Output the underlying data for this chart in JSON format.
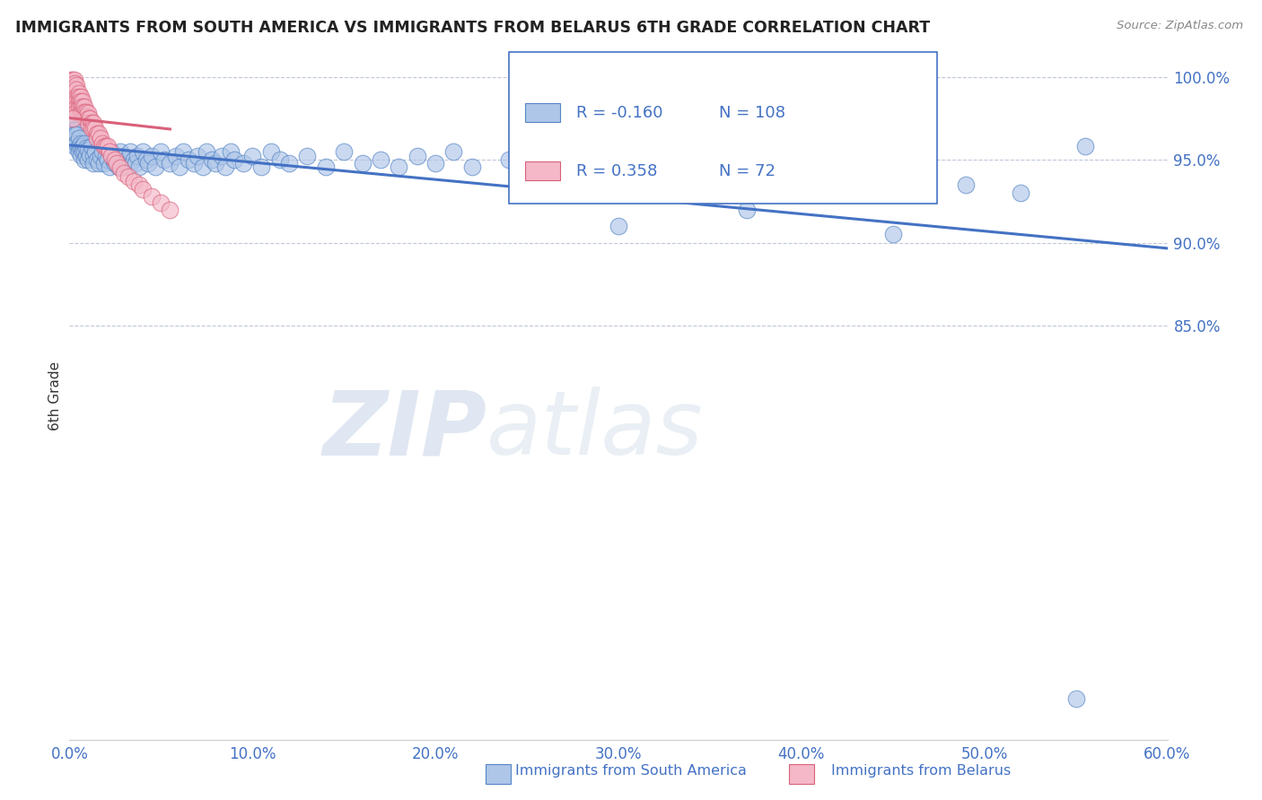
{
  "title": "IMMIGRANTS FROM SOUTH AMERICA VS IMMIGRANTS FROM BELARUS 6TH GRADE CORRELATION CHART",
  "source": "Source: ZipAtlas.com",
  "xlabel_blue": "Immigrants from South America",
  "xlabel_pink": "Immigrants from Belarus",
  "ylabel": "6th Grade",
  "watermark_zip": "ZIP",
  "watermark_atlas": "atlas",
  "x_min": 0.0,
  "x_max": 0.6,
  "y_min": 0.6,
  "y_max": 1.015,
  "yticks": [
    0.85,
    0.9,
    0.95,
    1.0
  ],
  "ytick_labels": [
    "85.0%",
    "90.0%",
    "95.0%",
    "100.0%"
  ],
  "xticks": [
    0.0,
    0.1,
    0.2,
    0.3,
    0.4,
    0.5,
    0.6
  ],
  "xtick_labels": [
    "0.0%",
    "10.0%",
    "20.0%",
    "30.0%",
    "40.0%",
    "50.0%",
    "60.0%"
  ],
  "R_blue": -0.16,
  "N_blue": 108,
  "R_pink": 0.358,
  "N_pink": 72,
  "blue_color": "#aec6e8",
  "blue_edge_color": "#5585c5",
  "pink_color": "#f4b8c8",
  "pink_edge_color": "#d9607a",
  "blue_line_color": "#4472c4",
  "pink_line_color": "#d9607a",
  "title_color": "#222222",
  "tick_color": "#4472c4",
  "grid_color": "#c0c8d8",
  "blue_scatter_x": [
    0.001,
    0.001,
    0.002,
    0.002,
    0.002,
    0.003,
    0.003,
    0.003,
    0.003,
    0.004,
    0.004,
    0.005,
    0.005,
    0.005,
    0.006,
    0.006,
    0.006,
    0.007,
    0.007,
    0.008,
    0.008,
    0.008,
    0.009,
    0.009,
    0.01,
    0.01,
    0.011,
    0.012,
    0.013,
    0.013,
    0.014,
    0.015,
    0.016,
    0.017,
    0.018,
    0.019,
    0.02,
    0.021,
    0.022,
    0.023,
    0.024,
    0.025,
    0.026,
    0.027,
    0.028,
    0.029,
    0.03,
    0.031,
    0.032,
    0.033,
    0.035,
    0.036,
    0.037,
    0.038,
    0.04,
    0.042,
    0.043,
    0.045,
    0.047,
    0.05,
    0.052,
    0.055,
    0.058,
    0.06,
    0.062,
    0.065,
    0.068,
    0.07,
    0.073,
    0.075,
    0.078,
    0.08,
    0.083,
    0.085,
    0.088,
    0.09,
    0.095,
    0.1,
    0.105,
    0.11,
    0.115,
    0.12,
    0.13,
    0.14,
    0.15,
    0.16,
    0.17,
    0.18,
    0.19,
    0.2,
    0.21,
    0.22,
    0.24,
    0.26,
    0.28,
    0.3,
    0.32,
    0.35,
    0.39,
    0.43,
    0.46,
    0.49,
    0.52,
    0.555,
    0.3,
    0.37,
    0.45,
    0.55
  ],
  "blue_scatter_y": [
    0.97,
    0.968,
    0.972,
    0.965,
    0.96,
    0.968,
    0.965,
    0.962,
    0.958,
    0.965,
    0.96,
    0.963,
    0.958,
    0.955,
    0.96,
    0.957,
    0.953,
    0.958,
    0.955,
    0.96,
    0.955,
    0.95,
    0.957,
    0.952,
    0.956,
    0.95,
    0.953,
    0.958,
    0.952,
    0.948,
    0.955,
    0.95,
    0.948,
    0.952,
    0.955,
    0.948,
    0.952,
    0.95,
    0.946,
    0.955,
    0.95,
    0.948,
    0.952,
    0.946,
    0.955,
    0.948,
    0.952,
    0.95,
    0.946,
    0.955,
    0.95,
    0.948,
    0.952,
    0.946,
    0.955,
    0.95,
    0.948,
    0.952,
    0.946,
    0.955,
    0.95,
    0.948,
    0.952,
    0.946,
    0.955,
    0.95,
    0.948,
    0.952,
    0.946,
    0.955,
    0.95,
    0.948,
    0.952,
    0.946,
    0.955,
    0.95,
    0.948,
    0.952,
    0.946,
    0.955,
    0.95,
    0.948,
    0.952,
    0.946,
    0.955,
    0.948,
    0.95,
    0.946,
    0.952,
    0.948,
    0.955,
    0.946,
    0.95,
    0.948,
    0.946,
    0.952,
    0.948,
    0.95,
    0.962,
    0.97,
    0.94,
    0.935,
    0.93,
    0.958,
    0.91,
    0.92,
    0.905,
    0.625
  ],
  "pink_scatter_x": [
    0.001,
    0.001,
    0.001,
    0.001,
    0.001,
    0.002,
    0.002,
    0.002,
    0.002,
    0.002,
    0.002,
    0.003,
    0.003,
    0.003,
    0.003,
    0.003,
    0.003,
    0.003,
    0.004,
    0.004,
    0.004,
    0.004,
    0.004,
    0.004,
    0.005,
    0.005,
    0.005,
    0.005,
    0.006,
    0.006,
    0.006,
    0.006,
    0.007,
    0.007,
    0.007,
    0.008,
    0.008,
    0.008,
    0.009,
    0.009,
    0.01,
    0.01,
    0.01,
    0.011,
    0.012,
    0.012,
    0.013,
    0.013,
    0.014,
    0.015,
    0.015,
    0.016,
    0.017,
    0.018,
    0.019,
    0.02,
    0.021,
    0.022,
    0.023,
    0.025,
    0.026,
    0.028,
    0.03,
    0.032,
    0.035,
    0.038,
    0.04,
    0.045,
    0.05,
    0.055,
    0.38,
    0.002
  ],
  "pink_scatter_y": [
    0.998,
    0.995,
    0.992,
    0.988,
    0.985,
    0.998,
    0.995,
    0.992,
    0.988,
    0.985,
    0.982,
    0.998,
    0.996,
    0.993,
    0.99,
    0.988,
    0.985,
    0.982,
    0.995,
    0.992,
    0.988,
    0.985,
    0.982,
    0.979,
    0.99,
    0.988,
    0.985,
    0.982,
    0.988,
    0.985,
    0.982,
    0.979,
    0.985,
    0.982,
    0.979,
    0.982,
    0.979,
    0.976,
    0.979,
    0.976,
    0.978,
    0.975,
    0.972,
    0.975,
    0.972,
    0.969,
    0.972,
    0.969,
    0.969,
    0.966,
    0.963,
    0.966,
    0.963,
    0.96,
    0.958,
    0.958,
    0.958,
    0.955,
    0.952,
    0.95,
    0.948,
    0.945,
    0.942,
    0.94,
    0.937,
    0.935,
    0.932,
    0.928,
    0.924,
    0.92,
    0.97,
    0.975
  ]
}
